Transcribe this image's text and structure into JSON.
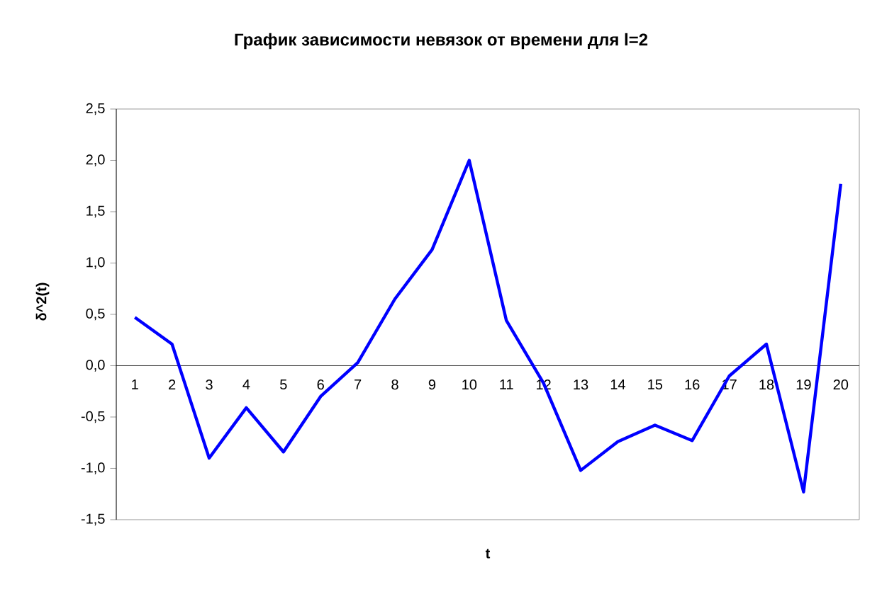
{
  "chart_data": {
    "type": "line",
    "title": "График зависимости невязок от времени для l=2",
    "xlabel": "t",
    "ylabel": "δ^2(t)",
    "categories": [
      "1",
      "2",
      "3",
      "4",
      "5",
      "6",
      "7",
      "8",
      "9",
      "10",
      "11",
      "12",
      "13",
      "14",
      "15",
      "16",
      "17",
      "18",
      "19",
      "20"
    ],
    "values": [
      0.47,
      0.21,
      -0.9,
      -0.41,
      -0.84,
      -0.3,
      0.03,
      0.65,
      1.13,
      2.0,
      0.44,
      -0.17,
      -1.02,
      -0.74,
      -0.58,
      -0.73,
      -0.1,
      0.21,
      -1.23,
      1.77
    ],
    "color": "#0000ff",
    "ylim": [
      -1.5,
      2.5
    ],
    "yticks": [
      {
        "value": -1.5,
        "label": "-1,5"
      },
      {
        "value": -1.0,
        "label": "-1,0"
      },
      {
        "value": -0.5,
        "label": "-0,5"
      },
      {
        "value": 0.0,
        "label": "0,0"
      },
      {
        "value": 0.5,
        "label": "0,5"
      },
      {
        "value": 1.0,
        "label": "1,0"
      },
      {
        "value": 1.5,
        "label": "1,5"
      },
      {
        "value": 2.0,
        "label": "2,0"
      },
      {
        "value": 2.5,
        "label": "2,5"
      }
    ]
  }
}
